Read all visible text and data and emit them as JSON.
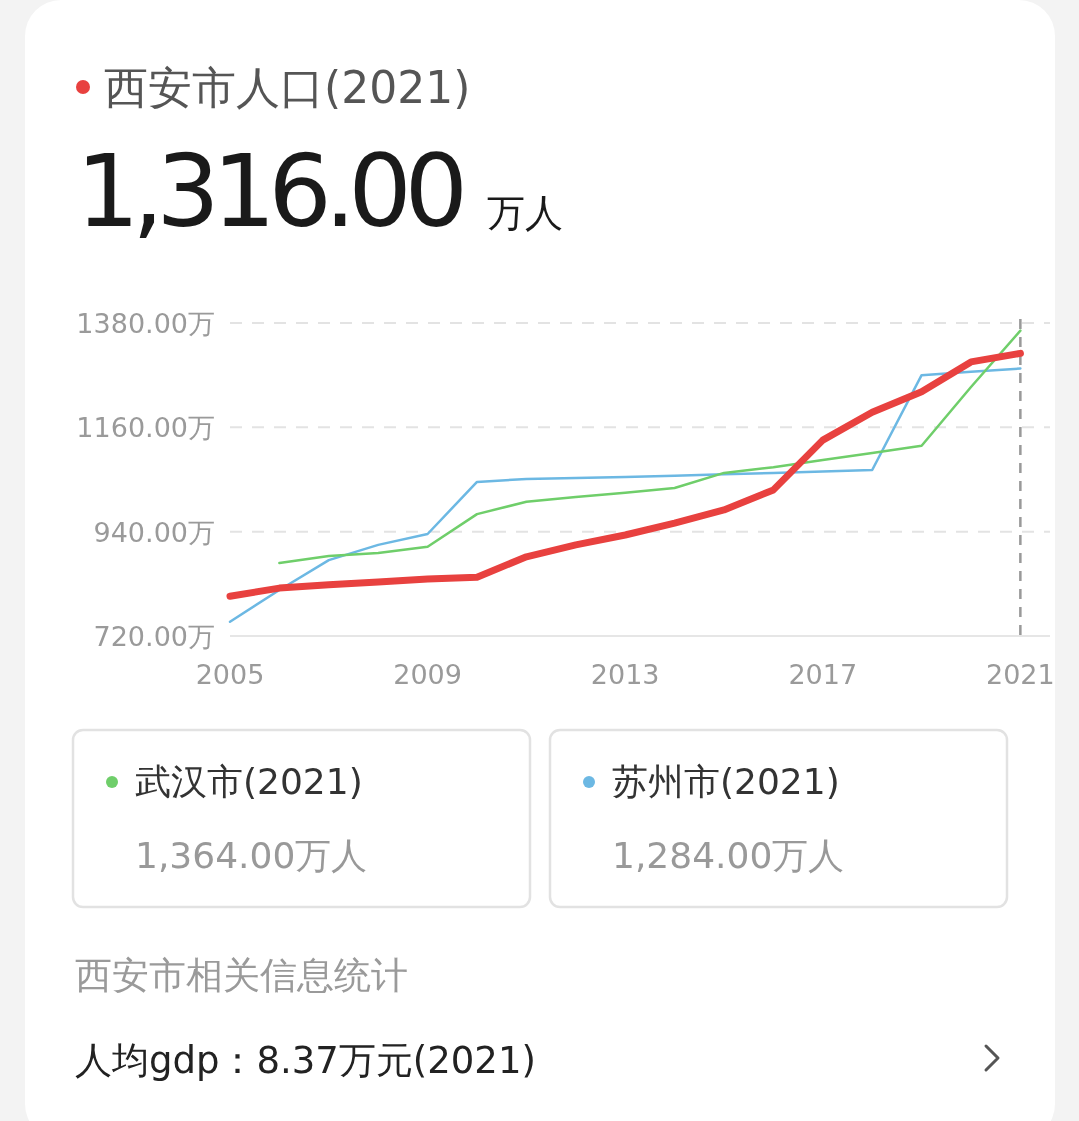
{
  "chart_data": {
    "type": "line",
    "title": "西安市人口(2021)",
    "x": [
      2005,
      2006,
      2007,
      2008,
      2009,
      2010,
      2011,
      2012,
      2013,
      2014,
      2015,
      2016,
      2017,
      2018,
      2019,
      2020,
      2021
    ],
    "series": [
      {
        "color": "#e8413f",
        "values": [
          804,
          821,
          828,
          834,
          840,
          844,
          887,
          912,
          933,
          958,
          986,
          1028,
          1133,
          1192,
          1235,
          1298,
          1316
        ]
      },
      {
        "name": "武汉市(2021)",
        "color": "#6fce6a",
        "values": [
          null,
          874,
          889,
          895,
          908,
          977,
          1003,
          1013,
          1022,
          1032,
          1064,
          1076,
          1091,
          1106,
          1121,
          1245,
          1364
        ]
      },
      {
        "name": "苏州市(2021)",
        "color": "#6cb8e3",
        "values": [
          750,
          817,
          880,
          912,
          935,
          1045,
          1051,
          1053,
          1055,
          1058,
          1061,
          1064,
          1067,
          1070,
          1270,
          1277,
          1284
        ]
      }
    ],
    "xlim": [
      2005,
      2021.6
    ],
    "xticks": [
      2005,
      2009,
      2013,
      2017,
      2021
    ],
    "ylim": [
      720,
      1380
    ],
    "yticks": [
      {
        "value": 720,
        "label": "720.00万"
      },
      {
        "value": 940,
        "label": "940.00万"
      },
      {
        "value": 1160,
        "label": "1160.00万"
      },
      {
        "value": 1380,
        "label": "1380.00万"
      }
    ],
    "grid": "y",
    "legend": "bottom",
    "line_style": "solid",
    "ref_lines": [
      {
        "axis": "x",
        "value": 2021,
        "color": "#999999",
        "line_style": "dashed"
      }
    ],
    "annotations": [
      "1,316.00",
      "万人",
      "1,364.00万人",
      "1,284.00万人",
      "西安市相关信息统计",
      "人均gdp：8.37万元(2021)"
    ]
  }
}
